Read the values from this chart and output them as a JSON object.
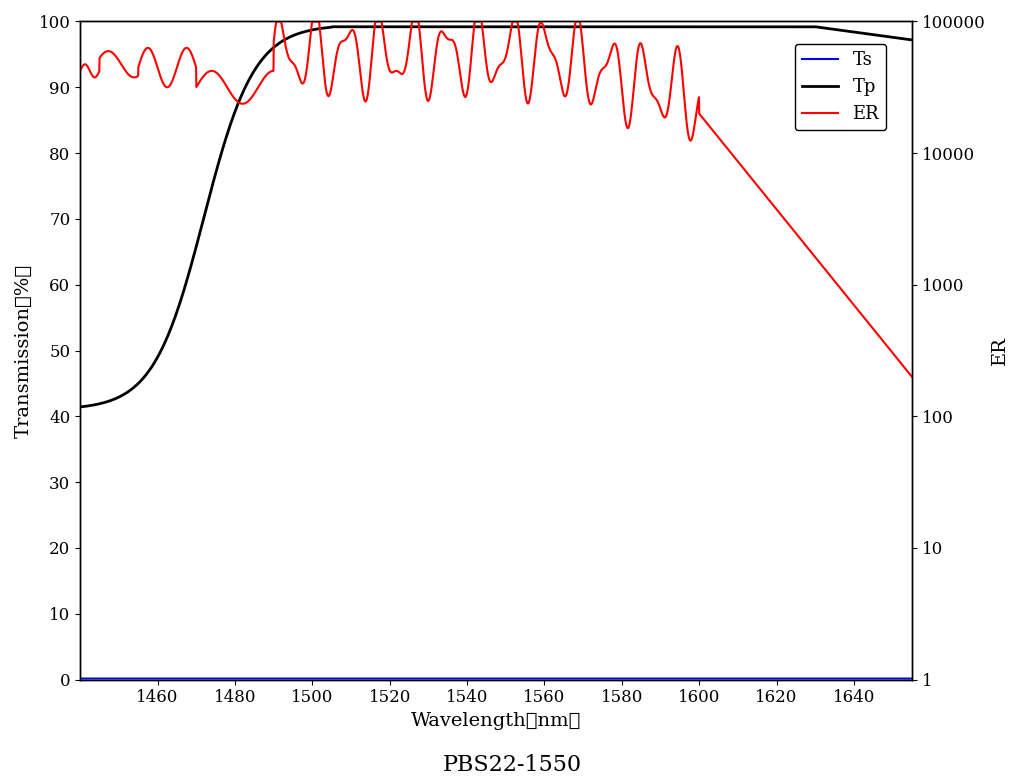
{
  "title": "PBS22-1550",
  "xlabel": "Wavelength（nm）",
  "ylabel_left": "Transmission（%）",
  "ylabel_right": "ER",
  "xlim": [
    1440,
    1655
  ],
  "ylim_left": [
    0,
    100
  ],
  "ylim_right": [
    1,
    100000
  ],
  "xticks": [
    1460,
    1480,
    1500,
    1520,
    1540,
    1560,
    1580,
    1600,
    1620,
    1640
  ],
  "yticks_left": [
    0,
    10,
    20,
    30,
    40,
    50,
    60,
    70,
    80,
    90,
    100
  ],
  "yticks_right": [
    1,
    10,
    100,
    1000,
    10000,
    100000
  ],
  "legend_labels": [
    "Ts",
    "Tp",
    "ER"
  ],
  "legend_colors": [
    "blue",
    "black",
    "red"
  ],
  "background_color": "#ffffff",
  "Ts_color": "blue",
  "Tp_color": "black",
  "ER_color": "red",
  "line_width": 1.5,
  "font_size_labels": 14,
  "font_size_ticks": 12,
  "font_size_title": 16,
  "font_size_legend": 13
}
